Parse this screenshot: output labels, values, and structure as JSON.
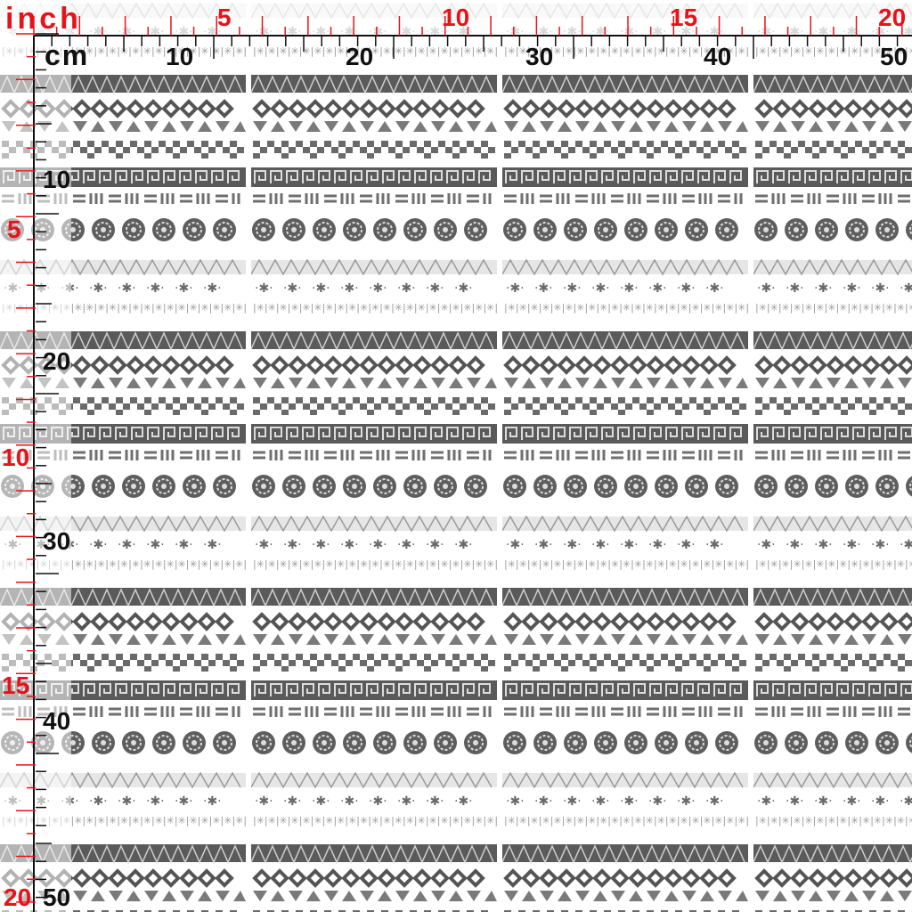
{
  "ruler": {
    "inch_unit": "inch",
    "cm_unit": "cm",
    "top_inch_labels": [
      "5",
      "10",
      "15",
      "20"
    ],
    "top_cm_labels": [
      "10",
      "20",
      "30",
      "40",
      "50"
    ],
    "left_inch_labels": [
      "5",
      "10",
      "15",
      "20"
    ],
    "left_cm_labels": [
      "10",
      "20",
      "30",
      "40",
      "50"
    ],
    "inch_color": "#e8131a",
    "cm_color": "#111111"
  },
  "fabric": {
    "pattern": "tribal-stripes",
    "colors": {
      "dark": "#555555",
      "mid": "#888888",
      "light": "#bbbbbb",
      "background": "#ffffff"
    },
    "band_sequence": [
      "triangle-band",
      "chevron-band",
      "small-triangle-band",
      "checker-band",
      "greek-key-band",
      "dash-band",
      "circle-medallion-band",
      "outline-triangle-band",
      "star-dot-band",
      "snowflake-band"
    ]
  }
}
